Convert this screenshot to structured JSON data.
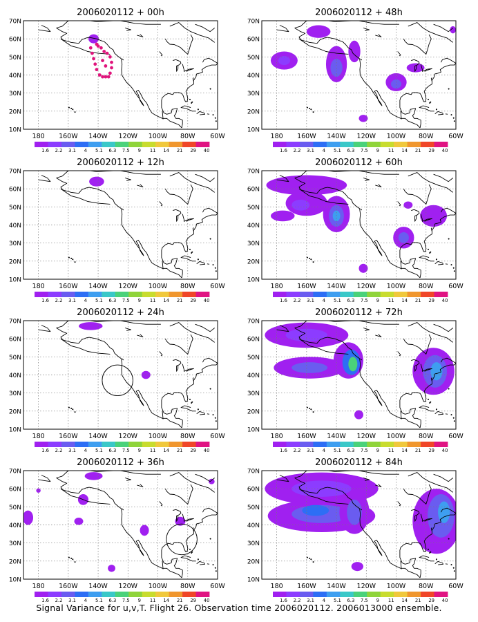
{
  "figure": {
    "caption": "Signal Variance for u,v,T. Flight 26. Observation time 2006020112. 2006013000 ensemble.",
    "lat_labels": [
      "10N",
      "20N",
      "30N",
      "40N",
      "50N",
      "60N",
      "70N"
    ],
    "lon_labels": [
      "180",
      "160W",
      "140W",
      "120W",
      "100W",
      "80W",
      "60W"
    ],
    "lon_range": [
      -190,
      -60
    ],
    "lat_range": [
      10,
      70
    ],
    "colorbar": {
      "labels": [
        "1.6",
        "2.2",
        "3.1",
        "4",
        "5.1",
        "6.3",
        "7.5",
        "9",
        "11",
        "14",
        "21",
        "29",
        "40"
      ],
      "colors": [
        "#a020f0",
        "#8c3cff",
        "#6a5cf0",
        "#2d6ef5",
        "#3e9ef0",
        "#3ac8c8",
        "#4ad27a",
        "#8fd43a",
        "#c8dc2e",
        "#f0c83c",
        "#f0962d",
        "#f04628",
        "#e01482"
      ]
    },
    "panels": [
      {
        "title": "2006020112 + 00h",
        "blobs": [
          {
            "lon": -143,
            "lat": 60,
            "rx": 3.5,
            "ry": 2.5,
            "level": 0
          }
        ],
        "dots": [
          [
            -145,
            55
          ],
          [
            -144,
            52
          ],
          [
            -143,
            49
          ],
          [
            -142,
            46
          ],
          [
            -141,
            43
          ],
          [
            -139,
            40
          ],
          [
            -137,
            39
          ],
          [
            -135,
            39
          ],
          [
            -133,
            39
          ],
          [
            -132,
            41
          ],
          [
            -131,
            44
          ],
          [
            -131,
            47
          ],
          [
            -132,
            50
          ],
          [
            -134,
            52
          ],
          [
            -136,
            53
          ],
          [
            -138,
            55
          ],
          [
            -140,
            56
          ],
          [
            -141,
            57
          ],
          [
            -137,
            48
          ],
          [
            -135,
            45
          ]
        ],
        "circles": []
      },
      {
        "title": "2006020112 + 48h",
        "blobs": [
          {
            "lon": -152,
            "lat": 64,
            "rx": 8,
            "ry": 3.5,
            "level": 0
          },
          {
            "lon": -175,
            "lat": 48,
            "rx": 9,
            "ry": 5,
            "level": 0
          },
          {
            "lon": -175,
            "lat": 48,
            "rx": 4,
            "ry": 2.5,
            "level": 1
          },
          {
            "lon": -140,
            "lat": 46,
            "rx": 7,
            "ry": 10,
            "level": 0
          },
          {
            "lon": -140,
            "lat": 44,
            "rx": 4,
            "ry": 5,
            "level": 2
          },
          {
            "lon": -128,
            "lat": 53,
            "rx": 4,
            "ry": 6,
            "level": 0
          },
          {
            "lon": -100,
            "lat": 36,
            "rx": 7,
            "ry": 5,
            "level": 0
          },
          {
            "lon": -100,
            "lat": 35,
            "rx": 3.5,
            "ry": 2.5,
            "level": 2
          },
          {
            "lon": -87,
            "lat": 44,
            "rx": 6,
            "ry": 2.5,
            "level": 0
          },
          {
            "lon": -122,
            "lat": 16,
            "rx": 3,
            "ry": 2,
            "level": 0
          },
          {
            "lon": -62,
            "lat": 65,
            "rx": 2,
            "ry": 2,
            "level": 0
          }
        ],
        "dots": [],
        "circles": []
      },
      {
        "title": "2006020112 + 12h",
        "blobs": [
          {
            "lon": -141,
            "lat": 64,
            "rx": 5,
            "ry": 2.7,
            "level": 0
          }
        ],
        "dots": [],
        "circles": []
      },
      {
        "title": "2006020112 + 60h",
        "blobs": [
          {
            "lon": -160,
            "lat": 62,
            "rx": 27,
            "ry": 5.5,
            "level": 0
          },
          {
            "lon": -160,
            "lat": 52,
            "rx": 14,
            "ry": 7,
            "level": 0
          },
          {
            "lon": -164,
            "lat": 51,
            "rx": 6,
            "ry": 3,
            "level": 1
          },
          {
            "lon": -140,
            "lat": 46,
            "rx": 9,
            "ry": 10,
            "level": 0
          },
          {
            "lon": -140,
            "lat": 45,
            "rx": 5,
            "ry": 6,
            "level": 2
          },
          {
            "lon": -140,
            "lat": 45,
            "rx": 2.5,
            "ry": 3,
            "level": 4
          },
          {
            "lon": -176,
            "lat": 45,
            "rx": 8,
            "ry": 3,
            "level": 0
          },
          {
            "lon": -95,
            "lat": 33,
            "rx": 7,
            "ry": 6,
            "level": 0
          },
          {
            "lon": -95,
            "lat": 33,
            "rx": 3.5,
            "ry": 3,
            "level": 2
          },
          {
            "lon": -75,
            "lat": 45,
            "rx": 9,
            "ry": 6,
            "level": 0
          },
          {
            "lon": -92,
            "lat": 51,
            "rx": 3,
            "ry": 2,
            "level": 0
          },
          {
            "lon": -122,
            "lat": 16,
            "rx": 3,
            "ry": 2.5,
            "level": 0
          }
        ],
        "dots": [],
        "circles": []
      },
      {
        "title": "2006020112 + 24h",
        "blobs": [
          {
            "lon": -145,
            "lat": 67,
            "rx": 8,
            "ry": 2.2,
            "level": 0
          },
          {
            "lon": -108,
            "lat": 40,
            "rx": 3,
            "ry": 2.2,
            "level": 0
          }
        ],
        "dots": [],
        "circles": [
          {
            "lon": -127,
            "lat": 37,
            "r": 8.5
          }
        ]
      },
      {
        "title": "2006020112 + 72h",
        "blobs": [
          {
            "lon": -160,
            "lat": 62,
            "rx": 28,
            "ry": 7,
            "level": 0
          },
          {
            "lon": -160,
            "lat": 62,
            "rx": 14,
            "ry": 3.5,
            "level": 1
          },
          {
            "lon": -158,
            "lat": 44,
            "rx": 24,
            "ry": 6,
            "level": 0
          },
          {
            "lon": -158,
            "lat": 44,
            "rx": 12,
            "ry": 3,
            "level": 2
          },
          {
            "lon": -132,
            "lat": 48,
            "rx": 10,
            "ry": 10,
            "level": 0
          },
          {
            "lon": -130,
            "lat": 47,
            "rx": 6,
            "ry": 7,
            "level": 3
          },
          {
            "lon": -129,
            "lat": 46,
            "rx": 3,
            "ry": 4,
            "level": 6
          },
          {
            "lon": -75,
            "lat": 42,
            "rx": 14,
            "ry": 13,
            "level": 0
          },
          {
            "lon": -74,
            "lat": 42,
            "rx": 8,
            "ry": 9,
            "level": 2
          },
          {
            "lon": -73,
            "lat": 42,
            "rx": 4,
            "ry": 5,
            "level": 4
          },
          {
            "lon": -125,
            "lat": 18,
            "rx": 3,
            "ry": 2.5,
            "level": 0
          }
        ],
        "dots": [],
        "circles": []
      },
      {
        "title": "2006020112 + 36h",
        "blobs": [
          {
            "lon": -143,
            "lat": 67,
            "rx": 6,
            "ry": 2.2,
            "level": 0
          },
          {
            "lon": -187,
            "lat": 44,
            "rx": 3.5,
            "ry": 4,
            "level": 0
          },
          {
            "lon": -180,
            "lat": 59,
            "rx": 1.5,
            "ry": 1.2,
            "level": 0
          },
          {
            "lon": -150,
            "lat": 54,
            "rx": 3.5,
            "ry": 3,
            "level": 0
          },
          {
            "lon": -153,
            "lat": 42,
            "rx": 3,
            "ry": 2,
            "level": 0
          },
          {
            "lon": -109,
            "lat": 37,
            "rx": 3,
            "ry": 3,
            "level": 0
          },
          {
            "lon": -85,
            "lat": 42,
            "rx": 3.5,
            "ry": 2.5,
            "level": 0
          },
          {
            "lon": -131,
            "lat": 16,
            "rx": 2.5,
            "ry": 2,
            "level": 0
          },
          {
            "lon": -64,
            "lat": 64,
            "rx": 2,
            "ry": 1.5,
            "level": 0
          }
        ],
        "dots": [],
        "circles": [
          {
            "lon": -84,
            "lat": 32,
            "r": 8.5
          }
        ]
      },
      {
        "title": "2006020112 + 84h",
        "blobs": [
          {
            "lon": -150,
            "lat": 60,
            "rx": 38,
            "ry": 9,
            "level": 0
          },
          {
            "lon": -150,
            "lat": 60,
            "rx": 20,
            "ry": 4.5,
            "level": 1
          },
          {
            "lon": -150,
            "lat": 45,
            "rx": 36,
            "ry": 9,
            "level": 0
          },
          {
            "lon": -150,
            "lat": 46,
            "rx": 20,
            "ry": 5,
            "level": 2
          },
          {
            "lon": -154,
            "lat": 48,
            "rx": 9,
            "ry": 3,
            "level": 3
          },
          {
            "lon": -128,
            "lat": 47,
            "rx": 10,
            "ry": 12,
            "level": 0
          },
          {
            "lon": -128,
            "lat": 47,
            "rx": 5,
            "ry": 7,
            "level": 2
          },
          {
            "lon": -73,
            "lat": 42,
            "rx": 16,
            "ry": 18,
            "level": 0
          },
          {
            "lon": -70,
            "lat": 45,
            "rx": 9,
            "ry": 12,
            "level": 2
          },
          {
            "lon": -68,
            "lat": 47,
            "rx": 4,
            "ry": 6,
            "level": 4
          },
          {
            "lon": -126,
            "lat": 17,
            "rx": 4,
            "ry": 2.5,
            "level": 0
          }
        ],
        "dots": [],
        "circles": []
      }
    ]
  }
}
